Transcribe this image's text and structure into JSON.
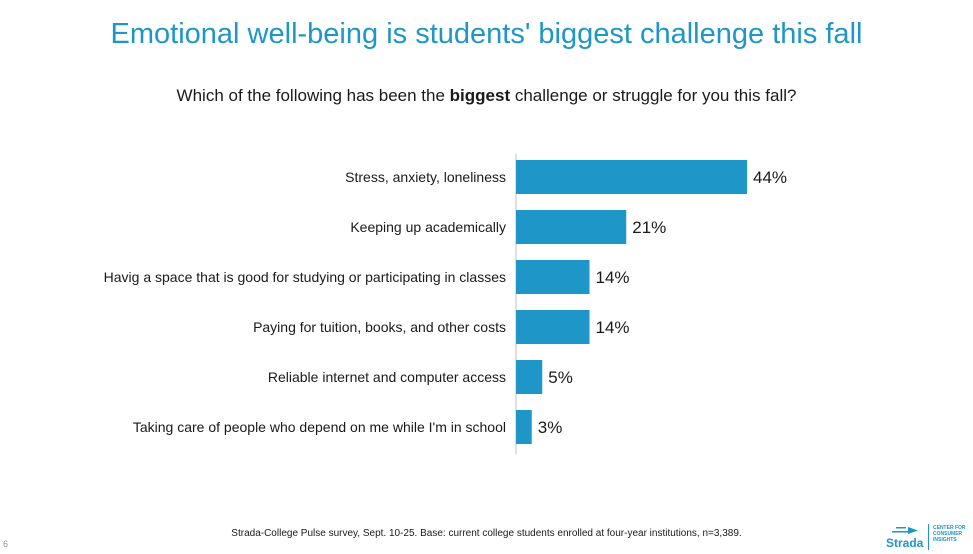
{
  "slide": {
    "title": "Emotional well-being is students' biggest challenge this fall",
    "subtitle_pre": "Which of the following has been the ",
    "subtitle_bold": "biggest",
    "subtitle_post": " challenge or struggle for you this fall?",
    "footnote": "Strada-College Pulse survey, Sept. 10-25. Base: current college students enrolled at four-year institutions, n=3,389.",
    "page_number": "6"
  },
  "logo": {
    "name": "Strada",
    "subtitle_lines": [
      "CENTER FOR",
      "CONSUMER",
      "INSIGHTS"
    ]
  },
  "colors": {
    "accent": "#1e96c8",
    "bar": "#1e96c8",
    "axis": "#bfbfbf"
  },
  "chart_data": {
    "type": "bar",
    "orientation": "horizontal",
    "categories": [
      "Stress, anxiety, loneliness",
      "Keeping up academically",
      "Havig a space that is good for studying or participating in classes",
      "Paying for tuition, books, and other costs",
      "Reliable internet and computer access",
      "Taking care of people who depend on me while I'm in school"
    ],
    "values": [
      44,
      21,
      14,
      14,
      5,
      3
    ],
    "value_labels": [
      "44%",
      "21%",
      "14%",
      "14%",
      "5%",
      "3%"
    ],
    "unit": "%",
    "xlim": [
      0,
      44
    ],
    "grid": false,
    "legend": "none"
  }
}
